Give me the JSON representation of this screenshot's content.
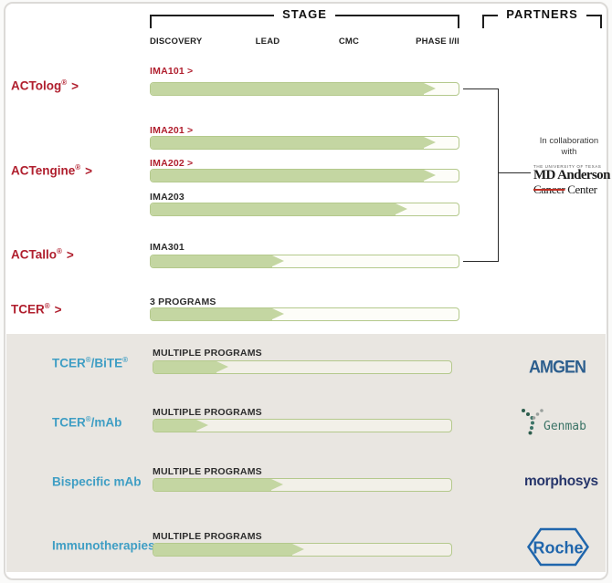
{
  "header": {
    "stage": "STAGE",
    "partners": "PARTNERS",
    "columns": [
      "DISCOVERY",
      "LEAD",
      "CMC",
      "PHASE I/II"
    ]
  },
  "pipeline": {
    "rows": [
      {
        "group": {
          "name": "ACTolog",
          "reg": "®",
          "arrow": ">"
        },
        "program": "IMA101",
        "arrow": ">",
        "progress": 92.6
      },
      {
        "group": {
          "name": "ACTengine",
          "reg": "®",
          "arrow": ">"
        },
        "program": "IMA201",
        "arrow": ">",
        "progress": 92.6
      },
      {
        "program": "IMA202",
        "arrow": ">",
        "progress": 92.6
      },
      {
        "program": "IMA203",
        "arrow": "",
        "progress": 83.5
      },
      {
        "group": {
          "name": "ACTallo",
          "reg": "®",
          "arrow": ">"
        },
        "program": "IMA301",
        "arrow": "",
        "progress": 43.4
      },
      {
        "group": {
          "name": "TCER",
          "reg": "®",
          "arrow": ">"
        },
        "program": "3 PROGRAMS",
        "arrow": "",
        "progress": 43.4
      }
    ]
  },
  "collaboration": {
    "line1": "In collaboration",
    "line2": "with",
    "logo": {
      "university": "THE UNIVERSITY OF TEXAS",
      "name": "MD Anderson",
      "cancer": "Cancer",
      "center": "Center"
    }
  },
  "partnered": {
    "rows": [
      {
        "label": {
          "p1": "TCER",
          "s1": "®",
          "p2": "/BiTE",
          "s2": "®"
        },
        "program": "MULTIPLE PROGRAMS",
        "progress": 25.0,
        "partner": "AMGEN"
      },
      {
        "label": {
          "p1": "TCER",
          "s1": "®",
          "p2": "/mAb",
          "s2": ""
        },
        "program": "MULTIPLE PROGRAMS",
        "progress": 18.3,
        "partner": "Genmab"
      },
      {
        "label": {
          "p1": "Bispecific mAb",
          "s1": "",
          "p2": "",
          "s2": ""
        },
        "program": "MULTIPLE PROGRAMS",
        "progress": 43.6,
        "partner": "morphosys"
      },
      {
        "label": {
          "p1": "Immunotherapies",
          "s1": "",
          "p2": "",
          "s2": ""
        },
        "program": "MULTIPLE PROGRAMS",
        "progress": 50.6,
        "partner": "Roche"
      }
    ]
  },
  "chart_data": {
    "type": "bar",
    "title": "Therapeutic pipeline progress by development stage",
    "stage_axis": [
      "DISCOVERY",
      "LEAD",
      "CMC",
      "PHASE I/II"
    ],
    "axis_range_pct": [
      0,
      100
    ],
    "series": [
      {
        "group": "ACTolog®",
        "program": "IMA101",
        "progress_pct": 92.6,
        "stage_reached": "PHASE I/II",
        "partner": "MD Anderson Cancer Center"
      },
      {
        "group": "ACTengine®",
        "program": "IMA201",
        "progress_pct": 92.6,
        "stage_reached": "PHASE I/II",
        "partner": "MD Anderson Cancer Center"
      },
      {
        "group": "ACTengine®",
        "program": "IMA202",
        "progress_pct": 92.6,
        "stage_reached": "PHASE I/II",
        "partner": "MD Anderson Cancer Center"
      },
      {
        "group": "ACTengine®",
        "program": "IMA203",
        "progress_pct": 83.5,
        "stage_reached": "PHASE I/II",
        "partner": "MD Anderson Cancer Center"
      },
      {
        "group": "ACTallo®",
        "program": "IMA301",
        "progress_pct": 43.4,
        "stage_reached": "LEAD",
        "partner": "MD Anderson Cancer Center"
      },
      {
        "group": "TCER®",
        "program": "3 PROGRAMS",
        "progress_pct": 43.4,
        "stage_reached": "LEAD",
        "partner": null
      },
      {
        "group": "TCER®/BiTE®",
        "program": "MULTIPLE PROGRAMS",
        "progress_pct": 25.0,
        "stage_reached": "DISCOVERY",
        "partner": "Amgen"
      },
      {
        "group": "TCER®/mAb",
        "program": "MULTIPLE PROGRAMS",
        "progress_pct": 18.3,
        "stage_reached": "DISCOVERY",
        "partner": "Genmab"
      },
      {
        "group": "Bispecific mAb",
        "program": "MULTIPLE PROGRAMS",
        "progress_pct": 43.6,
        "stage_reached": "LEAD",
        "partner": "MorphoSys"
      },
      {
        "group": "Immunotherapies",
        "program": "MULTIPLE PROGRAMS",
        "progress_pct": 50.6,
        "stage_reached": "LEAD",
        "partner": "Roche"
      }
    ],
    "colors": {
      "bar_fill": "#c4d6a2",
      "bar_border": "#b4c98c",
      "group_label_red": "#b01f2e",
      "category_label_teal": "#3f9ec4",
      "partnered_section_bg": "#e9e6e1"
    }
  }
}
